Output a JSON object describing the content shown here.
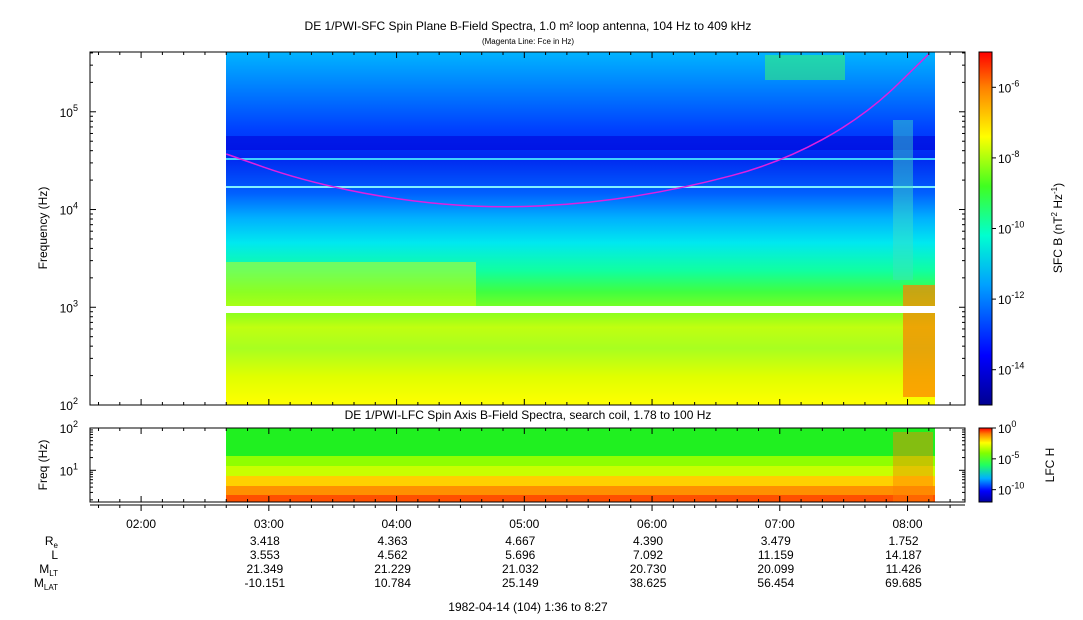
{
  "chart_data": [
    {
      "type": "heatmap",
      "title": "DE 1/PWI-SFC  Spin Plane B-Field Spectra, 1.0 m² loop antenna, 104 Hz to 409 kHz",
      "subtitle": "(Magenta Line: Fce in Hz)",
      "ylabel": "Frequency (Hz)",
      "yscale": "log",
      "ylim": [
        100,
        409000
      ],
      "y_ticks": [
        {
          "base": "10",
          "exp": "2"
        },
        {
          "base": "10",
          "exp": "3"
        },
        {
          "base": "10",
          "exp": "4"
        },
        {
          "base": "10",
          "exp": "5"
        }
      ],
      "data_start_time": "02:40",
      "data_end_time": "08:12",
      "gap_band_hz": [
        900,
        1000
      ],
      "fce_line": {
        "color": "#e020e0",
        "points": [
          [
            "02:40",
            37000
          ],
          [
            "03:15",
            20000
          ],
          [
            "04:00",
            12500
          ],
          [
            "04:45",
            10300
          ],
          [
            "05:30",
            11500
          ],
          [
            "06:15",
            16500
          ],
          [
            "07:00",
            30000
          ],
          [
            "07:40",
            90000
          ],
          [
            "08:10",
            390000
          ]
        ]
      },
      "colorbar": {
        "label_main": "SFC B (nT",
        "label_sup1": "2",
        "label_mid": " Hz",
        "label_sup2": "-1",
        "label_end": ")",
        "scale": "log",
        "range": [
          1e-15,
          1e-05
        ],
        "ticks": [
          {
            "base": "10",
            "exp": "-6"
          },
          {
            "base": "10",
            "exp": "-8"
          },
          {
            "base": "10",
            "exp": "-10"
          },
          {
            "base": "10",
            "exp": "-12"
          },
          {
            "base": "10",
            "exp": "-14"
          }
        ]
      }
    },
    {
      "type": "heatmap",
      "title": "DE 1/PWI-LFC  Spin Axis B-Field Spectra, search coil, 1.78 to 100 Hz",
      "ylabel": "Freq (Hz)",
      "yscale": "log",
      "ylim": [
        1.78,
        100
      ],
      "y_ticks": [
        {
          "base": "10",
          "exp": "1"
        },
        {
          "base": "10",
          "exp": "2"
        }
      ],
      "data_start_time": "02:40",
      "data_end_time": "08:12",
      "colorbar": {
        "label": "LFC H",
        "scale": "log",
        "range": [
          1e-12,
          1
        ],
        "ticks": [
          {
            "base": "10",
            "exp": "0"
          },
          {
            "base": "10",
            "exp": "-5"
          },
          {
            "base": "10",
            "exp": "-10"
          }
        ]
      }
    }
  ],
  "x_axis": {
    "range": [
      "01:36",
      "08:27"
    ],
    "ticks": [
      "02:00",
      "03:00",
      "04:00",
      "05:00",
      "06:00",
      "07:00",
      "08:00"
    ],
    "footer": "1982-04-14 (104) 1:36 to 8:27"
  },
  "ephemeris": {
    "rows": [
      {
        "label": "R",
        "sub": "e",
        "values": [
          "3.418",
          "4.363",
          "4.667",
          "4.390",
          "3.479",
          "1.752"
        ]
      },
      {
        "label": "L",
        "sub": "",
        "values": [
          "3.553",
          "4.562",
          "5.696",
          "7.092",
          "11.159",
          "14.187"
        ]
      },
      {
        "label": "M",
        "sub": "LT",
        "values": [
          "21.349",
          "21.229",
          "21.032",
          "20.730",
          "20.099",
          "11.426"
        ]
      },
      {
        "label": "M",
        "sub": "LAT",
        "values": [
          "-10.151",
          "10.784",
          "25.149",
          "38.625",
          "56.454",
          "69.685"
        ]
      }
    ]
  }
}
